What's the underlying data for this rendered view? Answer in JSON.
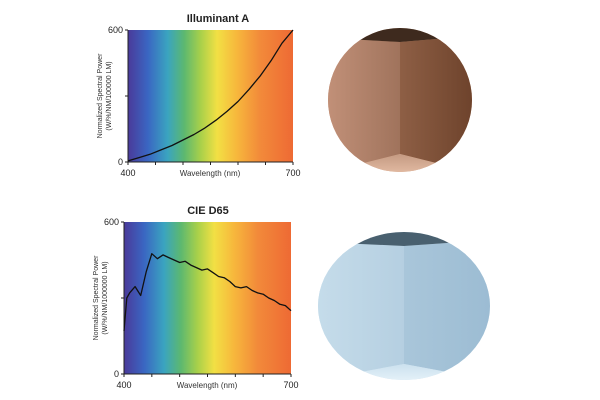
{
  "chart_data": [
    {
      "type": "line",
      "title": "Illuminant A",
      "xlabel": "Wavelength (nm)",
      "ylabel": [
        "Normalized Spectral Power",
        "(W/%/NM/100000 LM)"
      ],
      "xlim": [
        400,
        700
      ],
      "ylim": [
        0,
        600
      ],
      "xticks": [
        "400",
        "700"
      ],
      "yticks": [
        "0",
        "600"
      ],
      "grid": false,
      "series": [
        {
          "x": [
            400,
            420,
            440,
            460,
            480,
            500,
            520,
            540,
            560,
            580,
            600,
            620,
            640,
            660,
            680,
            700
          ],
          "y": [
            5,
            20,
            35,
            55,
            75,
            100,
            125,
            155,
            190,
            230,
            275,
            330,
            390,
            460,
            540,
            600
          ]
        }
      ]
    },
    {
      "type": "line",
      "title": "CIE D65",
      "xlabel": "Wavelength (nm)",
      "ylabel": [
        "Normalized Spectral Power",
        "(W/%/NM/1000000 LM)"
      ],
      "xlim": [
        400,
        700
      ],
      "ylim": [
        0,
        600
      ],
      "xticks": [
        "400",
        "700"
      ],
      "yticks": [
        "0",
        "600"
      ],
      "grid": false,
      "series": [
        {
          "x": [
            400,
            405,
            410,
            420,
            430,
            440,
            450,
            460,
            470,
            480,
            490,
            500,
            510,
            520,
            530,
            540,
            550,
            560,
            570,
            580,
            590,
            600,
            610,
            620,
            630,
            640,
            650,
            660,
            670,
            680,
            690,
            700
          ],
          "y": [
            170,
            300,
            320,
            345,
            310,
            405,
            475,
            455,
            470,
            460,
            450,
            440,
            445,
            430,
            420,
            410,
            415,
            400,
            385,
            380,
            365,
            345,
            340,
            345,
            330,
            320,
            315,
            300,
            290,
            275,
            270,
            250
          ]
        }
      ]
    }
  ],
  "scenes": [
    {
      "name": "warm-room",
      "colors": [
        "#c89a7e",
        "#9a6a50",
        "#5e3a26"
      ]
    },
    {
      "name": "cool-room",
      "colors": [
        "#cfe3ef",
        "#b3cfe1",
        "#8faec6"
      ]
    }
  ]
}
